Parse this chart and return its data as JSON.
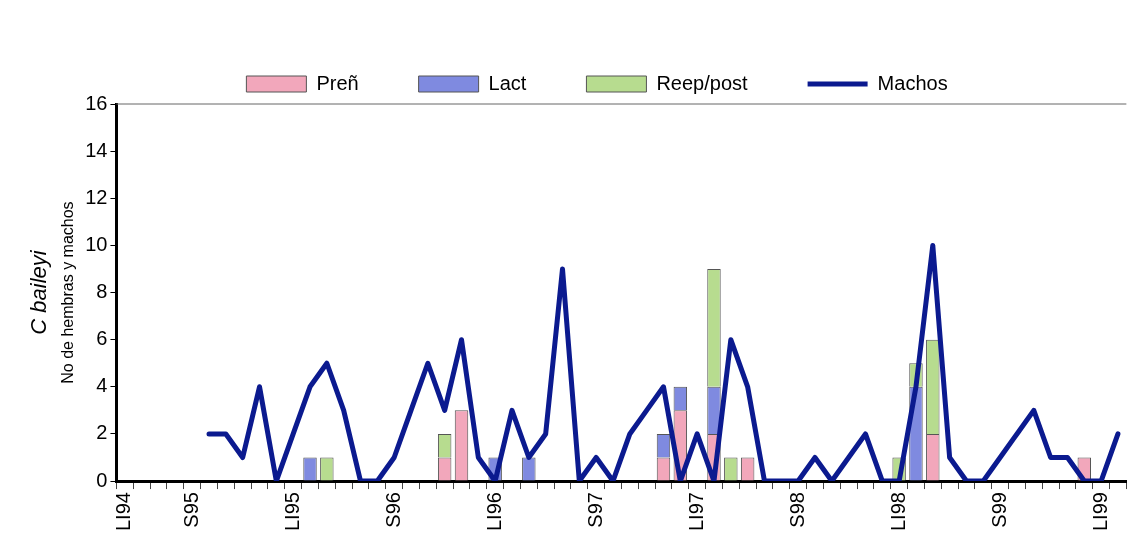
{
  "chart_data": {
    "type": "bar",
    "title": "C baileyi",
    "ylabel": "No de hembras y machos",
    "categories": [
      "LI94",
      null,
      null,
      null,
      "S95",
      null,
      null,
      null,
      null,
      null,
      "LI95",
      null,
      null,
      null,
      null,
      null,
      "S96",
      null,
      null,
      null,
      null,
      null,
      "LI96",
      null,
      null,
      null,
      null,
      null,
      "S97",
      null,
      null,
      null,
      null,
      null,
      "LI97",
      null,
      null,
      null,
      null,
      null,
      "S98",
      null,
      null,
      null,
      null,
      null,
      "LI98",
      null,
      null,
      null,
      null,
      null,
      "S99",
      null,
      null,
      null,
      null,
      null,
      "LI99",
      null
    ],
    "stacked": true,
    "series": [
      {
        "name": "Preñ",
        "color": "#f2a7bb",
        "values": [
          0,
          0,
          0,
          0,
          0,
          0,
          0,
          0,
          0,
          0,
          0,
          0,
          0,
          0,
          0,
          0,
          0,
          0,
          0,
          1,
          3,
          0,
          0,
          0,
          0,
          0,
          0,
          0,
          0,
          0,
          0,
          0,
          1,
          3,
          0,
          2,
          0,
          1,
          0,
          0,
          0,
          0,
          0,
          0,
          0,
          0,
          0,
          0,
          2,
          0,
          0,
          0,
          0,
          0,
          0,
          0,
          0,
          1,
          0,
          0
        ]
      },
      {
        "name": "Lact",
        "color": "#7f8ae0",
        "values": [
          0,
          0,
          0,
          0,
          0,
          0,
          0,
          0,
          0,
          0,
          0,
          1,
          0,
          0,
          0,
          0,
          0,
          0,
          0,
          0,
          0,
          0,
          1,
          0,
          1,
          0,
          0,
          0,
          0,
          0,
          0,
          0,
          1,
          1,
          0,
          2,
          0,
          0,
          0,
          0,
          0,
          0,
          0,
          0,
          0,
          0,
          0,
          4,
          0,
          0,
          0,
          0,
          0,
          0,
          0,
          0,
          0,
          0,
          0,
          0
        ]
      },
      {
        "name": "Reep/post",
        "color": "#b7dc8f",
        "values": [
          0,
          0,
          0,
          0,
          0,
          0,
          0,
          0,
          0,
          0,
          0,
          0,
          1,
          0,
          0,
          0,
          0,
          0,
          0,
          1,
          0,
          0,
          0,
          0,
          0,
          0,
          0,
          0,
          0,
          0,
          0,
          0,
          0,
          0,
          0,
          5,
          1,
          0,
          0,
          0,
          0,
          0,
          0,
          0,
          0,
          0,
          1,
          1,
          4,
          0,
          0,
          0,
          0,
          0,
          0,
          0,
          0,
          0,
          0,
          0
        ]
      },
      {
        "name": "Machos",
        "type": "line",
        "color": "#0b1a8f",
        "values": [
          null,
          null,
          null,
          null,
          null,
          2,
          2,
          1,
          4,
          0,
          2,
          4,
          5,
          3,
          0,
          0,
          1,
          3,
          5,
          3,
          6,
          1,
          0,
          3,
          1,
          2,
          9,
          0,
          1,
          0,
          2,
          3,
          4,
          0,
          2,
          0,
          6,
          4,
          0,
          0,
          0,
          1,
          0,
          1,
          2,
          0,
          0,
          4,
          10,
          1,
          0,
          0,
          1,
          2,
          3,
          1,
          1,
          0,
          0,
          2
        ]
      }
    ],
    "ylim": [
      0,
      16
    ],
    "yticks": [
      0,
      2,
      4,
      6,
      8,
      10,
      12,
      14,
      16
    ],
    "grid": false,
    "legend": "top"
  }
}
